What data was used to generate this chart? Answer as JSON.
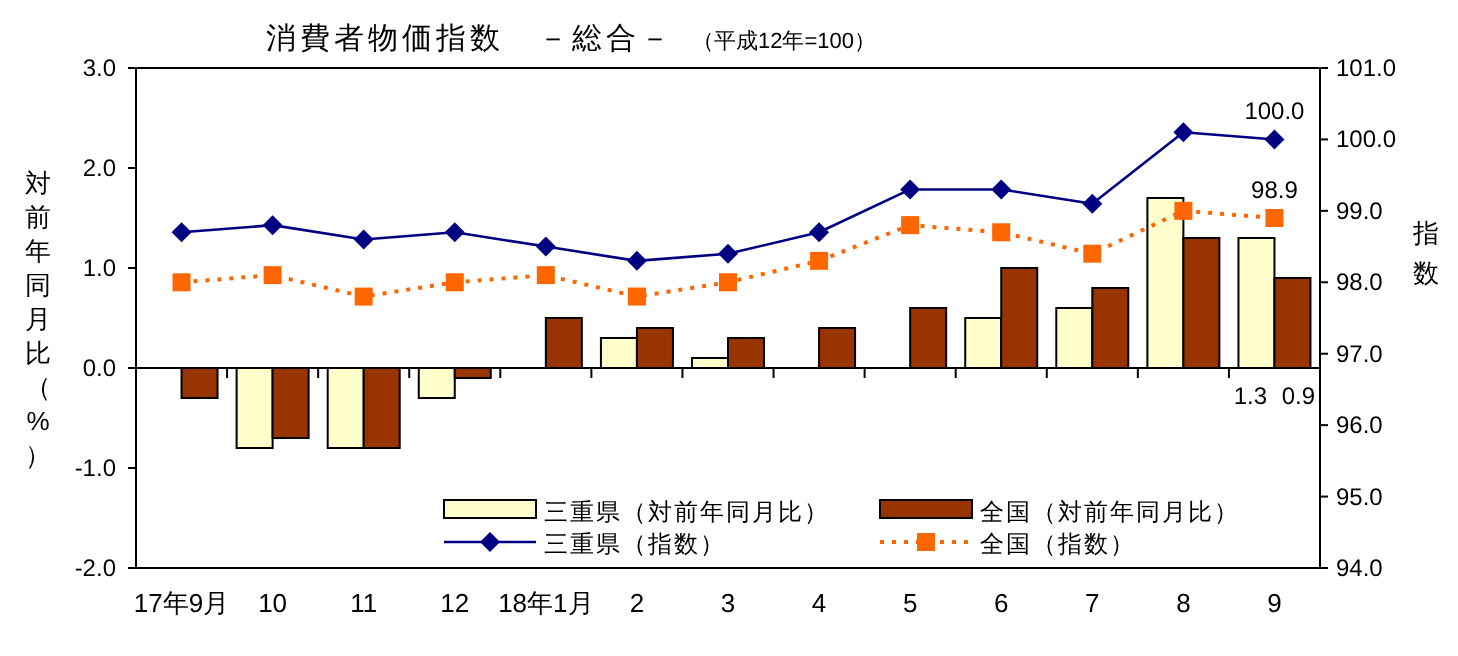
{
  "chart_data": {
    "type": "bar",
    "title": "消費者物価指数　－総合－",
    "subtitle": "（平成12年=100）",
    "ylabel": "対前年同月比（%）",
    "y2label": "指数",
    "categories": [
      "17年9月",
      "10",
      "11",
      "12",
      "18年1月",
      "2",
      "3",
      "4",
      "5",
      "6",
      "7",
      "8",
      "9"
    ],
    "series": [
      {
        "name": "三重県（対前年同月比）",
        "color": "#ffffcc",
        "values": [
          0.0,
          -0.8,
          -0.8,
          -0.3,
          0.0,
          0.3,
          0.1,
          0.0,
          0.0,
          0.5,
          0.6,
          1.7,
          1.3
        ],
        "value_labels": [
          null,
          null,
          null,
          null,
          null,
          null,
          null,
          null,
          null,
          null,
          null,
          null,
          "1.3"
        ]
      },
      {
        "name": "全国（対前年同月比）",
        "color": "#993300",
        "values": [
          -0.3,
          -0.7,
          -0.8,
          -0.1,
          0.5,
          0.4,
          0.3,
          0.4,
          0.6,
          1.0,
          0.8,
          1.3,
          0.9
        ],
        "value_labels": [
          null,
          null,
          null,
          null,
          null,
          null,
          null,
          null,
          null,
          null,
          null,
          null,
          "0.9"
        ]
      },
      {
        "name": "三重県（指数）",
        "type": "line",
        "axis": "y2",
        "color": "#000080",
        "marker": "diamond",
        "line_style": "solid",
        "values": [
          98.7,
          98.8,
          98.6,
          98.7,
          98.5,
          98.3,
          98.4,
          98.7,
          99.3,
          99.3,
          99.1,
          100.1,
          100.0
        ],
        "value_labels": [
          null,
          null,
          null,
          null,
          null,
          null,
          null,
          null,
          null,
          null,
          null,
          null,
          "100.0"
        ]
      },
      {
        "name": "全国（指数）",
        "type": "line",
        "axis": "y2",
        "color": "#ff6600",
        "marker": "square",
        "line_style": "dotted",
        "values": [
          98.0,
          98.1,
          97.8,
          98.0,
          98.1,
          97.8,
          98.0,
          98.3,
          98.8,
          98.7,
          98.4,
          99.0,
          98.9
        ],
        "value_labels": [
          null,
          null,
          null,
          null,
          null,
          null,
          null,
          null,
          null,
          null,
          null,
          null,
          "98.9"
        ]
      }
    ],
    "ylim": [
      -2,
      3
    ],
    "yticks": [
      {
        "value": -2,
        "label": "-2.0"
      },
      {
        "value": -1,
        "label": "-1.0"
      },
      {
        "value": 0,
        "label": "0.0"
      },
      {
        "value": 1,
        "label": "1.0"
      },
      {
        "value": 2,
        "label": "2.0"
      },
      {
        "value": 3,
        "label": "3.0"
      }
    ],
    "y2lim": [
      94,
      101
    ],
    "y2ticks": [
      {
        "value": 94,
        "label": "94.0"
      },
      {
        "value": 95,
        "label": "95.0"
      },
      {
        "value": 96,
        "label": "96.0"
      },
      {
        "value": 97,
        "label": "97.0"
      },
      {
        "value": 98,
        "label": "98.0"
      },
      {
        "value": 99,
        "label": "99.0"
      },
      {
        "value": 100,
        "label": "100.0"
      },
      {
        "value": 101,
        "label": "101.0"
      }
    ],
    "legend": "bottom"
  }
}
